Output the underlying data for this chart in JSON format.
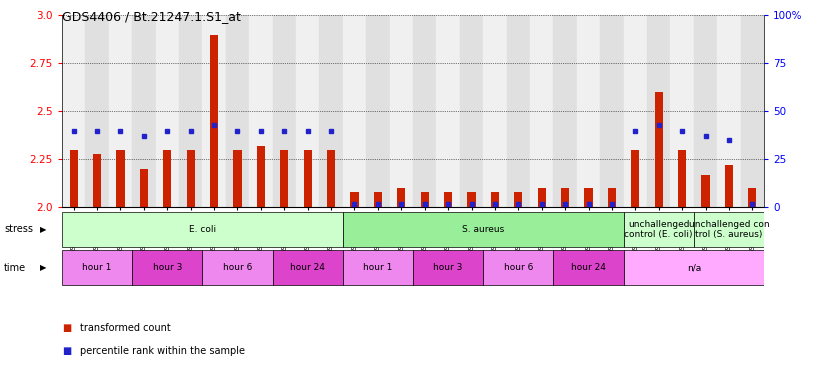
{
  "title": "GDS4406 / Bt.21247.1.S1_at",
  "samples": [
    "GSM624020",
    "GSM624025",
    "GSM624030",
    "GSM624021",
    "GSM624026",
    "GSM624031",
    "GSM624022",
    "GSM624027",
    "GSM624032",
    "GSM624023",
    "GSM624028",
    "GSM624033",
    "GSM624048",
    "GSM624053",
    "GSM624058",
    "GSM624049",
    "GSM624054",
    "GSM624059",
    "GSM624050",
    "GSM624055",
    "GSM624060",
    "GSM624051",
    "GSM624056",
    "GSM624061",
    "GSM624019",
    "GSM624024",
    "GSM624029",
    "GSM624047",
    "GSM624052",
    "GSM624057"
  ],
  "transformed_count": [
    2.3,
    2.28,
    2.3,
    2.2,
    2.3,
    2.3,
    2.9,
    2.3,
    2.32,
    2.3,
    2.3,
    2.3,
    2.08,
    2.08,
    2.1,
    2.08,
    2.08,
    2.08,
    2.08,
    2.08,
    2.1,
    2.1,
    2.1,
    2.1,
    2.3,
    2.6,
    2.3,
    2.17,
    2.22,
    2.1
  ],
  "percentile_rank": [
    40,
    40,
    40,
    37,
    40,
    40,
    43,
    40,
    40,
    40,
    40,
    40,
    2,
    2,
    2,
    2,
    2,
    2,
    2,
    2,
    2,
    2,
    2,
    2,
    40,
    43,
    40,
    37,
    35,
    2
  ],
  "ylim_left": [
    2.0,
    3.0
  ],
  "ylim_right": [
    0,
    100
  ],
  "yticks_left": [
    2.0,
    2.25,
    2.5,
    2.75,
    3.0
  ],
  "yticks_right": [
    0,
    25,
    50,
    75,
    100
  ],
  "stress_groups": [
    {
      "label": "E. coli",
      "start": 0,
      "end": 11,
      "color": "#ccffcc"
    },
    {
      "label": "S. aureus",
      "start": 12,
      "end": 23,
      "color": "#99ee99"
    },
    {
      "label": "unchallenged\ncontrol (E. coli)",
      "start": 24,
      "end": 26,
      "color": "#ccffcc"
    },
    {
      "label": "unchallenged con\ntrol (S. aureus)",
      "start": 27,
      "end": 29,
      "color": "#ccffcc"
    }
  ],
  "time_groups": [
    {
      "label": "hour 1",
      "start": 0,
      "end": 2,
      "color": "#ee88ee"
    },
    {
      "label": "hour 3",
      "start": 3,
      "end": 5,
      "color": "#dd44cc"
    },
    {
      "label": "hour 6",
      "start": 6,
      "end": 8,
      "color": "#ee88ee"
    },
    {
      "label": "hour 24",
      "start": 9,
      "end": 11,
      "color": "#dd44cc"
    },
    {
      "label": "hour 1",
      "start": 12,
      "end": 14,
      "color": "#ee88ee"
    },
    {
      "label": "hour 3",
      "start": 15,
      "end": 17,
      "color": "#dd44cc"
    },
    {
      "label": "hour 6",
      "start": 18,
      "end": 20,
      "color": "#ee88ee"
    },
    {
      "label": "hour 24",
      "start": 21,
      "end": 23,
      "color": "#dd44cc"
    },
    {
      "label": "n/a",
      "start": 24,
      "end": 29,
      "color": "#ffaaff"
    }
  ],
  "bar_color": "#cc2200",
  "dot_color": "#2222cc",
  "col_bg_even": "#f0f0f0",
  "col_bg_odd": "#e0e0e0",
  "plot_bg": "#ffffff"
}
